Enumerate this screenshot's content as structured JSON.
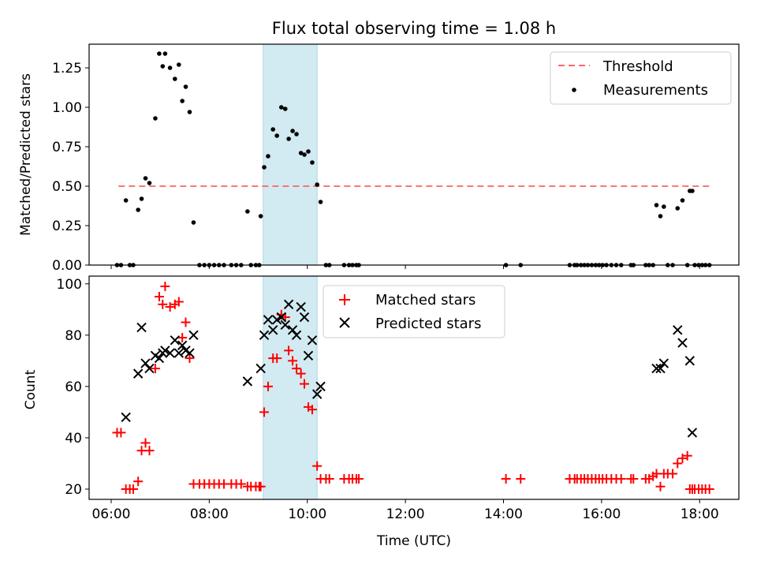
{
  "chart_data": [
    {
      "type": "scatter",
      "title": "Flux total observing time = 1.08 h",
      "ylabel": "Matched/Predicted stars",
      "xlabel": "",
      "xlim": [
        5.55,
        18.8
      ],
      "ylim": [
        0,
        1.4
      ],
      "yticks": [
        0,
        0.25,
        0.5,
        0.75,
        1.0,
        1.25
      ],
      "ytick_labels": [
        "0.00",
        "0.25",
        "0.50",
        "0.75",
        "1.00",
        "1.25"
      ],
      "highlight_span": [
        9.1,
        10.2
      ],
      "highlight_color": "#add8e6",
      "legend_position": "upper right",
      "threshold": {
        "name": "Threshold",
        "value": 0.5,
        "x_range": [
          6.15,
          18.25
        ],
        "color": "#ff6666"
      },
      "series": [
        {
          "name": "Measurements",
          "color": "#000000",
          "points": [
            [
              6.12,
              0
            ],
            [
              6.2,
              0
            ],
            [
              6.3,
              0.41
            ],
            [
              6.38,
              0
            ],
            [
              6.45,
              0
            ],
            [
              6.55,
              0.35
            ],
            [
              6.62,
              0.42
            ],
            [
              6.7,
              0.55
            ],
            [
              6.78,
              0.52
            ],
            [
              6.9,
              0.93
            ],
            [
              6.98,
              1.34
            ],
            [
              7.05,
              1.26
            ],
            [
              7.1,
              1.34
            ],
            [
              7.2,
              1.25
            ],
            [
              7.3,
              1.18
            ],
            [
              7.38,
              1.27
            ],
            [
              7.45,
              1.04
            ],
            [
              7.52,
              1.13
            ],
            [
              7.6,
              0.97
            ],
            [
              7.68,
              0.27
            ],
            [
              7.8,
              0
            ],
            [
              7.9,
              0
            ],
            [
              8.0,
              0
            ],
            [
              8.1,
              0
            ],
            [
              8.2,
              0
            ],
            [
              8.3,
              0
            ],
            [
              8.45,
              0
            ],
            [
              8.55,
              0
            ],
            [
              8.65,
              0
            ],
            [
              8.78,
              0.34
            ],
            [
              8.85,
              0
            ],
            [
              8.95,
              0
            ],
            [
              9.02,
              0
            ],
            [
              9.05,
              0.31
            ],
            [
              9.12,
              0.62
            ],
            [
              9.2,
              0.69
            ],
            [
              9.3,
              0.86
            ],
            [
              9.38,
              0.82
            ],
            [
              9.47,
              1.0
            ],
            [
              9.55,
              0.99
            ],
            [
              9.62,
              0.8
            ],
            [
              9.7,
              0.85
            ],
            [
              9.78,
              0.83
            ],
            [
              9.87,
              0.71
            ],
            [
              9.94,
              0.7
            ],
            [
              10.02,
              0.72
            ],
            [
              10.1,
              0.65
            ],
            [
              10.2,
              0.51
            ],
            [
              10.27,
              0.4
            ],
            [
              10.38,
              0
            ],
            [
              10.45,
              0
            ],
            [
              10.75,
              0
            ],
            [
              10.85,
              0
            ],
            [
              10.92,
              0
            ],
            [
              11.0,
              0
            ],
            [
              11.05,
              0
            ],
            [
              14.05,
              0
            ],
            [
              14.35,
              0
            ],
            [
              15.35,
              0
            ],
            [
              15.45,
              0
            ],
            [
              15.5,
              0
            ],
            [
              15.58,
              0
            ],
            [
              15.65,
              0
            ],
            [
              15.72,
              0
            ],
            [
              15.8,
              0
            ],
            [
              15.88,
              0
            ],
            [
              15.95,
              0
            ],
            [
              16.02,
              0
            ],
            [
              16.1,
              0
            ],
            [
              16.2,
              0
            ],
            [
              16.3,
              0
            ],
            [
              16.4,
              0
            ],
            [
              16.6,
              0
            ],
            [
              16.65,
              0
            ],
            [
              16.9,
              0
            ],
            [
              16.97,
              0
            ],
            [
              17.05,
              0
            ],
            [
              17.12,
              0.38
            ],
            [
              17.2,
              0.31
            ],
            [
              17.27,
              0.37
            ],
            [
              17.35,
              0
            ],
            [
              17.45,
              0
            ],
            [
              17.55,
              0.36
            ],
            [
              17.65,
              0.41
            ],
            [
              17.75,
              0
            ],
            [
              17.8,
              0.47
            ],
            [
              17.85,
              0.47
            ],
            [
              17.9,
              0
            ],
            [
              17.98,
              0
            ],
            [
              18.05,
              0
            ],
            [
              18.12,
              0
            ],
            [
              18.2,
              0
            ]
          ]
        }
      ]
    },
    {
      "type": "scatter",
      "title": "",
      "ylabel": "Count",
      "xlabel": "Time (UTC)",
      "xlim": [
        5.55,
        18.8
      ],
      "ylim": [
        16,
        103
      ],
      "yticks": [
        20,
        40,
        60,
        80,
        100
      ],
      "ytick_labels": [
        "20",
        "40",
        "60",
        "80",
        "100"
      ],
      "xticks": [
        6,
        8,
        10,
        12,
        14,
        16,
        18
      ],
      "xtick_labels": [
        "06:00",
        "08:00",
        "10:00",
        "12:00",
        "14:00",
        "16:00",
        "18:00"
      ],
      "highlight_span": [
        9.1,
        10.2
      ],
      "highlight_color": "#add8e6",
      "legend_position": "upper center",
      "series": [
        {
          "name": "Matched stars",
          "color": "#ff0000",
          "marker": "plus",
          "points": [
            [
              6.12,
              42
            ],
            [
              6.2,
              42
            ],
            [
              6.3,
              20
            ],
            [
              6.38,
              20
            ],
            [
              6.45,
              20
            ],
            [
              6.55,
              23
            ],
            [
              6.62,
              35
            ],
            [
              6.7,
              38
            ],
            [
              6.78,
              35
            ],
            [
              6.9,
              67
            ],
            [
              6.98,
              95
            ],
            [
              7.05,
              92
            ],
            [
              7.1,
              99
            ],
            [
              7.2,
              91
            ],
            [
              7.3,
              92
            ],
            [
              7.38,
              93
            ],
            [
              7.45,
              79
            ],
            [
              7.52,
              85
            ],
            [
              7.6,
              71
            ],
            [
              7.68,
              22
            ],
            [
              7.8,
              22
            ],
            [
              7.9,
              22
            ],
            [
              8.0,
              22
            ],
            [
              8.1,
              22
            ],
            [
              8.2,
              22
            ],
            [
              8.3,
              22
            ],
            [
              8.45,
              22
            ],
            [
              8.55,
              22
            ],
            [
              8.65,
              22
            ],
            [
              8.78,
              21
            ],
            [
              8.85,
              21
            ],
            [
              8.95,
              21
            ],
            [
              9.02,
              21
            ],
            [
              9.05,
              21
            ],
            [
              9.12,
              50
            ],
            [
              9.2,
              60
            ],
            [
              9.3,
              71
            ],
            [
              9.38,
              71
            ],
            [
              9.47,
              88
            ],
            [
              9.55,
              87
            ],
            [
              9.62,
              74
            ],
            [
              9.7,
              70
            ],
            [
              9.78,
              67
            ],
            [
              9.87,
              65
            ],
            [
              9.94,
              61
            ],
            [
              10.02,
              52
            ],
            [
              10.1,
              51
            ],
            [
              10.2,
              29
            ],
            [
              10.27,
              24
            ],
            [
              10.38,
              24
            ],
            [
              10.45,
              24
            ],
            [
              10.75,
              24
            ],
            [
              10.85,
              24
            ],
            [
              10.92,
              24
            ],
            [
              11.0,
              24
            ],
            [
              11.05,
              24
            ],
            [
              14.05,
              24
            ],
            [
              14.35,
              24
            ],
            [
              15.35,
              24
            ],
            [
              15.45,
              24
            ],
            [
              15.5,
              24
            ],
            [
              15.58,
              24
            ],
            [
              15.65,
              24
            ],
            [
              15.72,
              24
            ],
            [
              15.8,
              24
            ],
            [
              15.88,
              24
            ],
            [
              15.95,
              24
            ],
            [
              16.02,
              24
            ],
            [
              16.1,
              24
            ],
            [
              16.2,
              24
            ],
            [
              16.3,
              24
            ],
            [
              16.4,
              24
            ],
            [
              16.6,
              24
            ],
            [
              16.65,
              24
            ],
            [
              16.9,
              24
            ],
            [
              16.97,
              24
            ],
            [
              17.05,
              25
            ],
            [
              17.12,
              26
            ],
            [
              17.2,
              21
            ],
            [
              17.27,
              26
            ],
            [
              17.35,
              26
            ],
            [
              17.45,
              26
            ],
            [
              17.55,
              30
            ],
            [
              17.65,
              32
            ],
            [
              17.75,
              33
            ],
            [
              17.8,
              20
            ],
            [
              17.85,
              20
            ],
            [
              17.9,
              20
            ],
            [
              17.98,
              20
            ],
            [
              18.05,
              20
            ],
            [
              18.12,
              20
            ],
            [
              18.2,
              20
            ]
          ]
        },
        {
          "name": "Predicted stars",
          "color": "#000000",
          "marker": "x",
          "points": [
            [
              6.3,
              48
            ],
            [
              6.55,
              65
            ],
            [
              6.62,
              83
            ],
            [
              6.7,
              69
            ],
            [
              6.78,
              67
            ],
            [
              6.9,
              72
            ],
            [
              6.98,
              71
            ],
            [
              7.05,
              73
            ],
            [
              7.1,
              74
            ],
            [
              7.2,
              73
            ],
            [
              7.3,
              78
            ],
            [
              7.38,
              73
            ],
            [
              7.45,
              76
            ],
            [
              7.52,
              74
            ],
            [
              7.6,
              73
            ],
            [
              7.68,
              80
            ],
            [
              8.78,
              62
            ],
            [
              9.05,
              67
            ],
            [
              9.12,
              80
            ],
            [
              9.2,
              86
            ],
            [
              9.3,
              82
            ],
            [
              9.38,
              86
            ],
            [
              9.47,
              87
            ],
            [
              9.55,
              84
            ],
            [
              9.62,
              92
            ],
            [
              9.7,
              82
            ],
            [
              9.78,
              80
            ],
            [
              9.87,
              91
            ],
            [
              9.94,
              87
            ],
            [
              10.02,
              72
            ],
            [
              10.1,
              78
            ],
            [
              10.2,
              57
            ],
            [
              10.27,
              60
            ],
            [
              17.12,
              67
            ],
            [
              17.2,
              67
            ],
            [
              17.27,
              69
            ],
            [
              17.55,
              82
            ],
            [
              17.65,
              77
            ],
            [
              17.8,
              70
            ],
            [
              17.85,
              42
            ]
          ]
        }
      ]
    }
  ]
}
